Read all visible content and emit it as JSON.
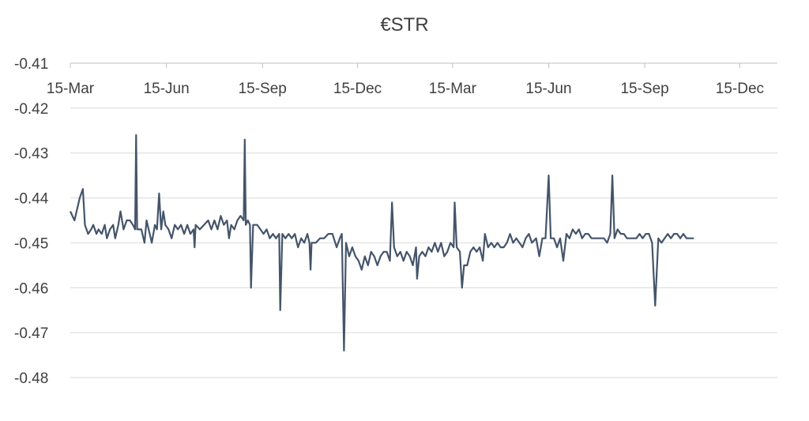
{
  "chart_data": {
    "type": "line",
    "title": "€STR",
    "xlabel": "",
    "ylabel": "",
    "ylim": [
      -0.48,
      -0.41
    ],
    "y_ticks": [
      "-0.41",
      "-0.42",
      "-0.43",
      "-0.44",
      "-0.45",
      "-0.46",
      "-0.47",
      "-0.48"
    ],
    "x_range": [
      "2019-03-15",
      "2021-01-20"
    ],
    "x_ticks": [
      {
        "date": "2019-03-15",
        "label": "15-Mar"
      },
      {
        "date": "2019-06-15",
        "label": "15-Jun"
      },
      {
        "date": "2019-09-15",
        "label": "15-Sep"
      },
      {
        "date": "2019-12-15",
        "label": "15-Dec"
      },
      {
        "date": "2020-03-15",
        "label": "15-Mar"
      },
      {
        "date": "2020-06-15",
        "label": "15-Jun"
      },
      {
        "date": "2020-09-15",
        "label": "15-Sep"
      },
      {
        "date": "2020-12-15",
        "label": "15-Dec"
      }
    ],
    "grid": true,
    "legend": "none",
    "color": "#44546a",
    "series": [
      {
        "points": [
          [
            "2019-03-15",
            -0.443
          ],
          [
            "2019-03-17",
            -0.444
          ],
          [
            "2019-03-19",
            -0.445
          ],
          [
            "2019-03-22",
            -0.442
          ],
          [
            "2019-03-24",
            -0.44
          ],
          [
            "2019-03-27",
            -0.438
          ],
          [
            "2019-03-29",
            -0.446
          ],
          [
            "2019-04-01",
            -0.448
          ],
          [
            "2019-04-04",
            -0.447
          ],
          [
            "2019-04-06",
            -0.446
          ],
          [
            "2019-04-09",
            -0.448
          ],
          [
            "2019-04-11",
            -0.447
          ],
          [
            "2019-04-14",
            -0.448
          ],
          [
            "2019-04-17",
            -0.446
          ],
          [
            "2019-04-19",
            -0.449
          ],
          [
            "2019-04-22",
            -0.447
          ],
          [
            "2019-04-25",
            -0.446
          ],
          [
            "2019-04-27",
            -0.449
          ],
          [
            "2019-04-30",
            -0.446
          ],
          [
            "2019-05-02",
            -0.443
          ],
          [
            "2019-05-05",
            -0.447
          ],
          [
            "2019-05-08",
            -0.445
          ],
          [
            "2019-05-11",
            -0.445
          ],
          [
            "2019-05-14",
            -0.446
          ],
          [
            "2019-05-16",
            -0.447
          ],
          [
            "2019-05-17",
            -0.426
          ],
          [
            "2019-05-18",
            -0.447
          ],
          [
            "2019-05-22",
            -0.447
          ],
          [
            "2019-05-25",
            -0.45
          ],
          [
            "2019-05-27",
            -0.445
          ],
          [
            "2019-05-30",
            -0.448
          ],
          [
            "2019-06-01",
            -0.45
          ],
          [
            "2019-06-04",
            -0.446
          ],
          [
            "2019-06-06",
            -0.447
          ],
          [
            "2019-06-08",
            -0.439
          ],
          [
            "2019-06-10",
            -0.447
          ],
          [
            "2019-06-12",
            -0.443
          ],
          [
            "2019-06-14",
            -0.446
          ],
          [
            "2019-06-17",
            -0.447
          ],
          [
            "2019-06-20",
            -0.449
          ],
          [
            "2019-06-23",
            -0.446
          ],
          [
            "2019-06-26",
            -0.447
          ],
          [
            "2019-06-29",
            -0.446
          ],
          [
            "2019-07-02",
            -0.448
          ],
          [
            "2019-07-05",
            -0.446
          ],
          [
            "2019-07-08",
            -0.448
          ],
          [
            "2019-07-11",
            -0.447
          ],
          [
            "2019-07-12",
            -0.451
          ],
          [
            "2019-07-13",
            -0.446
          ],
          [
            "2019-07-17",
            -0.447
          ],
          [
            "2019-07-21",
            -0.446
          ],
          [
            "2019-07-25",
            -0.445
          ],
          [
            "2019-07-28",
            -0.447
          ],
          [
            "2019-07-31",
            -0.445
          ],
          [
            "2019-08-03",
            -0.447
          ],
          [
            "2019-08-06",
            -0.444
          ],
          [
            "2019-08-09",
            -0.446
          ],
          [
            "2019-08-12",
            -0.445
          ],
          [
            "2019-08-14",
            -0.449
          ],
          [
            "2019-08-16",
            -0.446
          ],
          [
            "2019-08-19",
            -0.447
          ],
          [
            "2019-08-22",
            -0.445
          ],
          [
            "2019-08-25",
            -0.444
          ],
          [
            "2019-08-28",
            -0.445
          ],
          [
            "2019-08-29",
            -0.427
          ],
          [
            "2019-08-30",
            -0.446
          ],
          [
            "2019-09-01",
            -0.445
          ],
          [
            "2019-09-03",
            -0.446
          ],
          [
            "2019-09-04",
            -0.46
          ],
          [
            "2019-09-06",
            -0.446
          ],
          [
            "2019-09-10",
            -0.446
          ],
          [
            "2019-09-13",
            -0.447
          ],
          [
            "2019-09-16",
            -0.448
          ],
          [
            "2019-09-19",
            -0.447
          ],
          [
            "2019-09-22",
            -0.449
          ],
          [
            "2019-09-25",
            -0.448
          ],
          [
            "2019-09-28",
            -0.449
          ],
          [
            "2019-10-01",
            -0.448
          ],
          [
            "2019-10-02",
            -0.465
          ],
          [
            "2019-10-04",
            -0.448
          ],
          [
            "2019-10-07",
            -0.449
          ],
          [
            "2019-10-10",
            -0.448
          ],
          [
            "2019-10-13",
            -0.449
          ],
          [
            "2019-10-16",
            -0.448
          ],
          [
            "2019-10-19",
            -0.451
          ],
          [
            "2019-10-22",
            -0.449
          ],
          [
            "2019-10-25",
            -0.45
          ],
          [
            "2019-10-28",
            -0.448
          ],
          [
            "2019-10-30",
            -0.45
          ],
          [
            "2019-10-31",
            -0.456
          ],
          [
            "2019-11-01",
            -0.45
          ],
          [
            "2019-11-05",
            -0.45
          ],
          [
            "2019-11-09",
            -0.449
          ],
          [
            "2019-11-13",
            -0.449
          ],
          [
            "2019-11-17",
            -0.448
          ],
          [
            "2019-11-21",
            -0.448
          ],
          [
            "2019-11-25",
            -0.451
          ],
          [
            "2019-11-28",
            -0.449
          ],
          [
            "2019-11-30",
            -0.448
          ],
          [
            "2019-12-02",
            -0.474
          ],
          [
            "2019-12-04",
            -0.45
          ],
          [
            "2019-12-07",
            -0.453
          ],
          [
            "2019-12-10",
            -0.451
          ],
          [
            "2019-12-13",
            -0.453
          ],
          [
            "2019-12-16",
            -0.454
          ],
          [
            "2019-12-19",
            -0.456
          ],
          [
            "2019-12-22",
            -0.453
          ],
          [
            "2019-12-25",
            -0.455
          ],
          [
            "2019-12-28",
            -0.452
          ],
          [
            "2019-12-31",
            -0.453
          ],
          [
            "2020-01-03",
            -0.455
          ],
          [
            "2020-01-06",
            -0.453
          ],
          [
            "2020-01-09",
            -0.452
          ],
          [
            "2020-01-12",
            -0.452
          ],
          [
            "2020-01-15",
            -0.454
          ],
          [
            "2020-01-17",
            -0.441
          ],
          [
            "2020-01-19",
            -0.451
          ],
          [
            "2020-01-22",
            -0.453
          ],
          [
            "2020-01-25",
            -0.452
          ],
          [
            "2020-01-28",
            -0.454
          ],
          [
            "2020-01-31",
            -0.452
          ],
          [
            "2020-02-03",
            -0.453
          ],
          [
            "2020-02-06",
            -0.455
          ],
          [
            "2020-02-09",
            -0.451
          ],
          [
            "2020-02-10",
            -0.458
          ],
          [
            "2020-02-12",
            -0.453
          ],
          [
            "2020-02-15",
            -0.452
          ],
          [
            "2020-02-18",
            -0.453
          ],
          [
            "2020-02-21",
            -0.451
          ],
          [
            "2020-02-24",
            -0.452
          ],
          [
            "2020-02-27",
            -0.45
          ],
          [
            "2020-03-01",
            -0.452
          ],
          [
            "2020-03-04",
            -0.45
          ],
          [
            "2020-03-07",
            -0.453
          ],
          [
            "2020-03-10",
            -0.452
          ],
          [
            "2020-03-13",
            -0.45
          ],
          [
            "2020-03-16",
            -0.451
          ],
          [
            "2020-03-17",
            -0.441
          ],
          [
            "2020-03-19",
            -0.451
          ],
          [
            "2020-03-22",
            -0.452
          ],
          [
            "2020-03-24",
            -0.46
          ],
          [
            "2020-03-26",
            -0.455
          ],
          [
            "2020-03-29",
            -0.455
          ],
          [
            "2020-04-01",
            -0.452
          ],
          [
            "2020-04-04",
            -0.451
          ],
          [
            "2020-04-07",
            -0.452
          ],
          [
            "2020-04-10",
            -0.451
          ],
          [
            "2020-04-13",
            -0.454
          ],
          [
            "2020-04-15",
            -0.448
          ],
          [
            "2020-04-18",
            -0.451
          ],
          [
            "2020-04-21",
            -0.45
          ],
          [
            "2020-04-24",
            -0.451
          ],
          [
            "2020-04-27",
            -0.45
          ],
          [
            "2020-04-30",
            -0.451
          ],
          [
            "2020-05-03",
            -0.451
          ],
          [
            "2020-05-06",
            -0.45
          ],
          [
            "2020-05-09",
            -0.448
          ],
          [
            "2020-05-12",
            -0.45
          ],
          [
            "2020-05-15",
            -0.449
          ],
          [
            "2020-05-18",
            -0.45
          ],
          [
            "2020-05-21",
            -0.451
          ],
          [
            "2020-05-24",
            -0.449
          ],
          [
            "2020-05-27",
            -0.448
          ],
          [
            "2020-05-30",
            -0.45
          ],
          [
            "2020-06-03",
            -0.449
          ],
          [
            "2020-06-06",
            -0.453
          ],
          [
            "2020-06-09",
            -0.449
          ],
          [
            "2020-06-12",
            -0.449
          ],
          [
            "2020-06-15",
            -0.435
          ],
          [
            "2020-06-17",
            -0.449
          ],
          [
            "2020-06-20",
            -0.449
          ],
          [
            "2020-06-23",
            -0.451
          ],
          [
            "2020-06-26",
            -0.449
          ],
          [
            "2020-06-29",
            -0.454
          ],
          [
            "2020-07-02",
            -0.448
          ],
          [
            "2020-07-05",
            -0.449
          ],
          [
            "2020-07-08",
            -0.447
          ],
          [
            "2020-07-11",
            -0.448
          ],
          [
            "2020-07-14",
            -0.447
          ],
          [
            "2020-07-17",
            -0.449
          ],
          [
            "2020-07-20",
            -0.448
          ],
          [
            "2020-07-23",
            -0.448
          ],
          [
            "2020-07-26",
            -0.449
          ],
          [
            "2020-07-29",
            -0.449
          ],
          [
            "2020-08-01",
            -0.449
          ],
          [
            "2020-08-04",
            -0.449
          ],
          [
            "2020-08-07",
            -0.449
          ],
          [
            "2020-08-10",
            -0.45
          ],
          [
            "2020-08-13",
            -0.448
          ],
          [
            "2020-08-15",
            -0.435
          ],
          [
            "2020-08-17",
            -0.449
          ],
          [
            "2020-08-20",
            -0.447
          ],
          [
            "2020-08-23",
            -0.448
          ],
          [
            "2020-08-26",
            -0.448
          ],
          [
            "2020-08-29",
            -0.449
          ],
          [
            "2020-09-01",
            -0.449
          ],
          [
            "2020-09-04",
            -0.449
          ],
          [
            "2020-09-07",
            -0.449
          ],
          [
            "2020-09-10",
            -0.448
          ],
          [
            "2020-09-13",
            -0.449
          ],
          [
            "2020-09-16",
            -0.448
          ],
          [
            "2020-09-19",
            -0.448
          ],
          [
            "2020-09-22",
            -0.45
          ],
          [
            "2020-09-25",
            -0.464
          ],
          [
            "2020-09-28",
            -0.449
          ],
          [
            "2020-10-01",
            -0.45
          ],
          [
            "2020-10-04",
            -0.449
          ],
          [
            "2020-10-07",
            -0.448
          ],
          [
            "2020-10-10",
            -0.449
          ],
          [
            "2020-10-13",
            -0.448
          ],
          [
            "2020-10-16",
            -0.448
          ],
          [
            "2020-10-19",
            -0.449
          ],
          [
            "2020-10-22",
            -0.448
          ],
          [
            "2020-10-25",
            -0.449
          ],
          [
            "2020-10-28",
            -0.449
          ],
          [
            "2020-11-01",
            -0.449
          ]
        ]
      }
    ]
  }
}
